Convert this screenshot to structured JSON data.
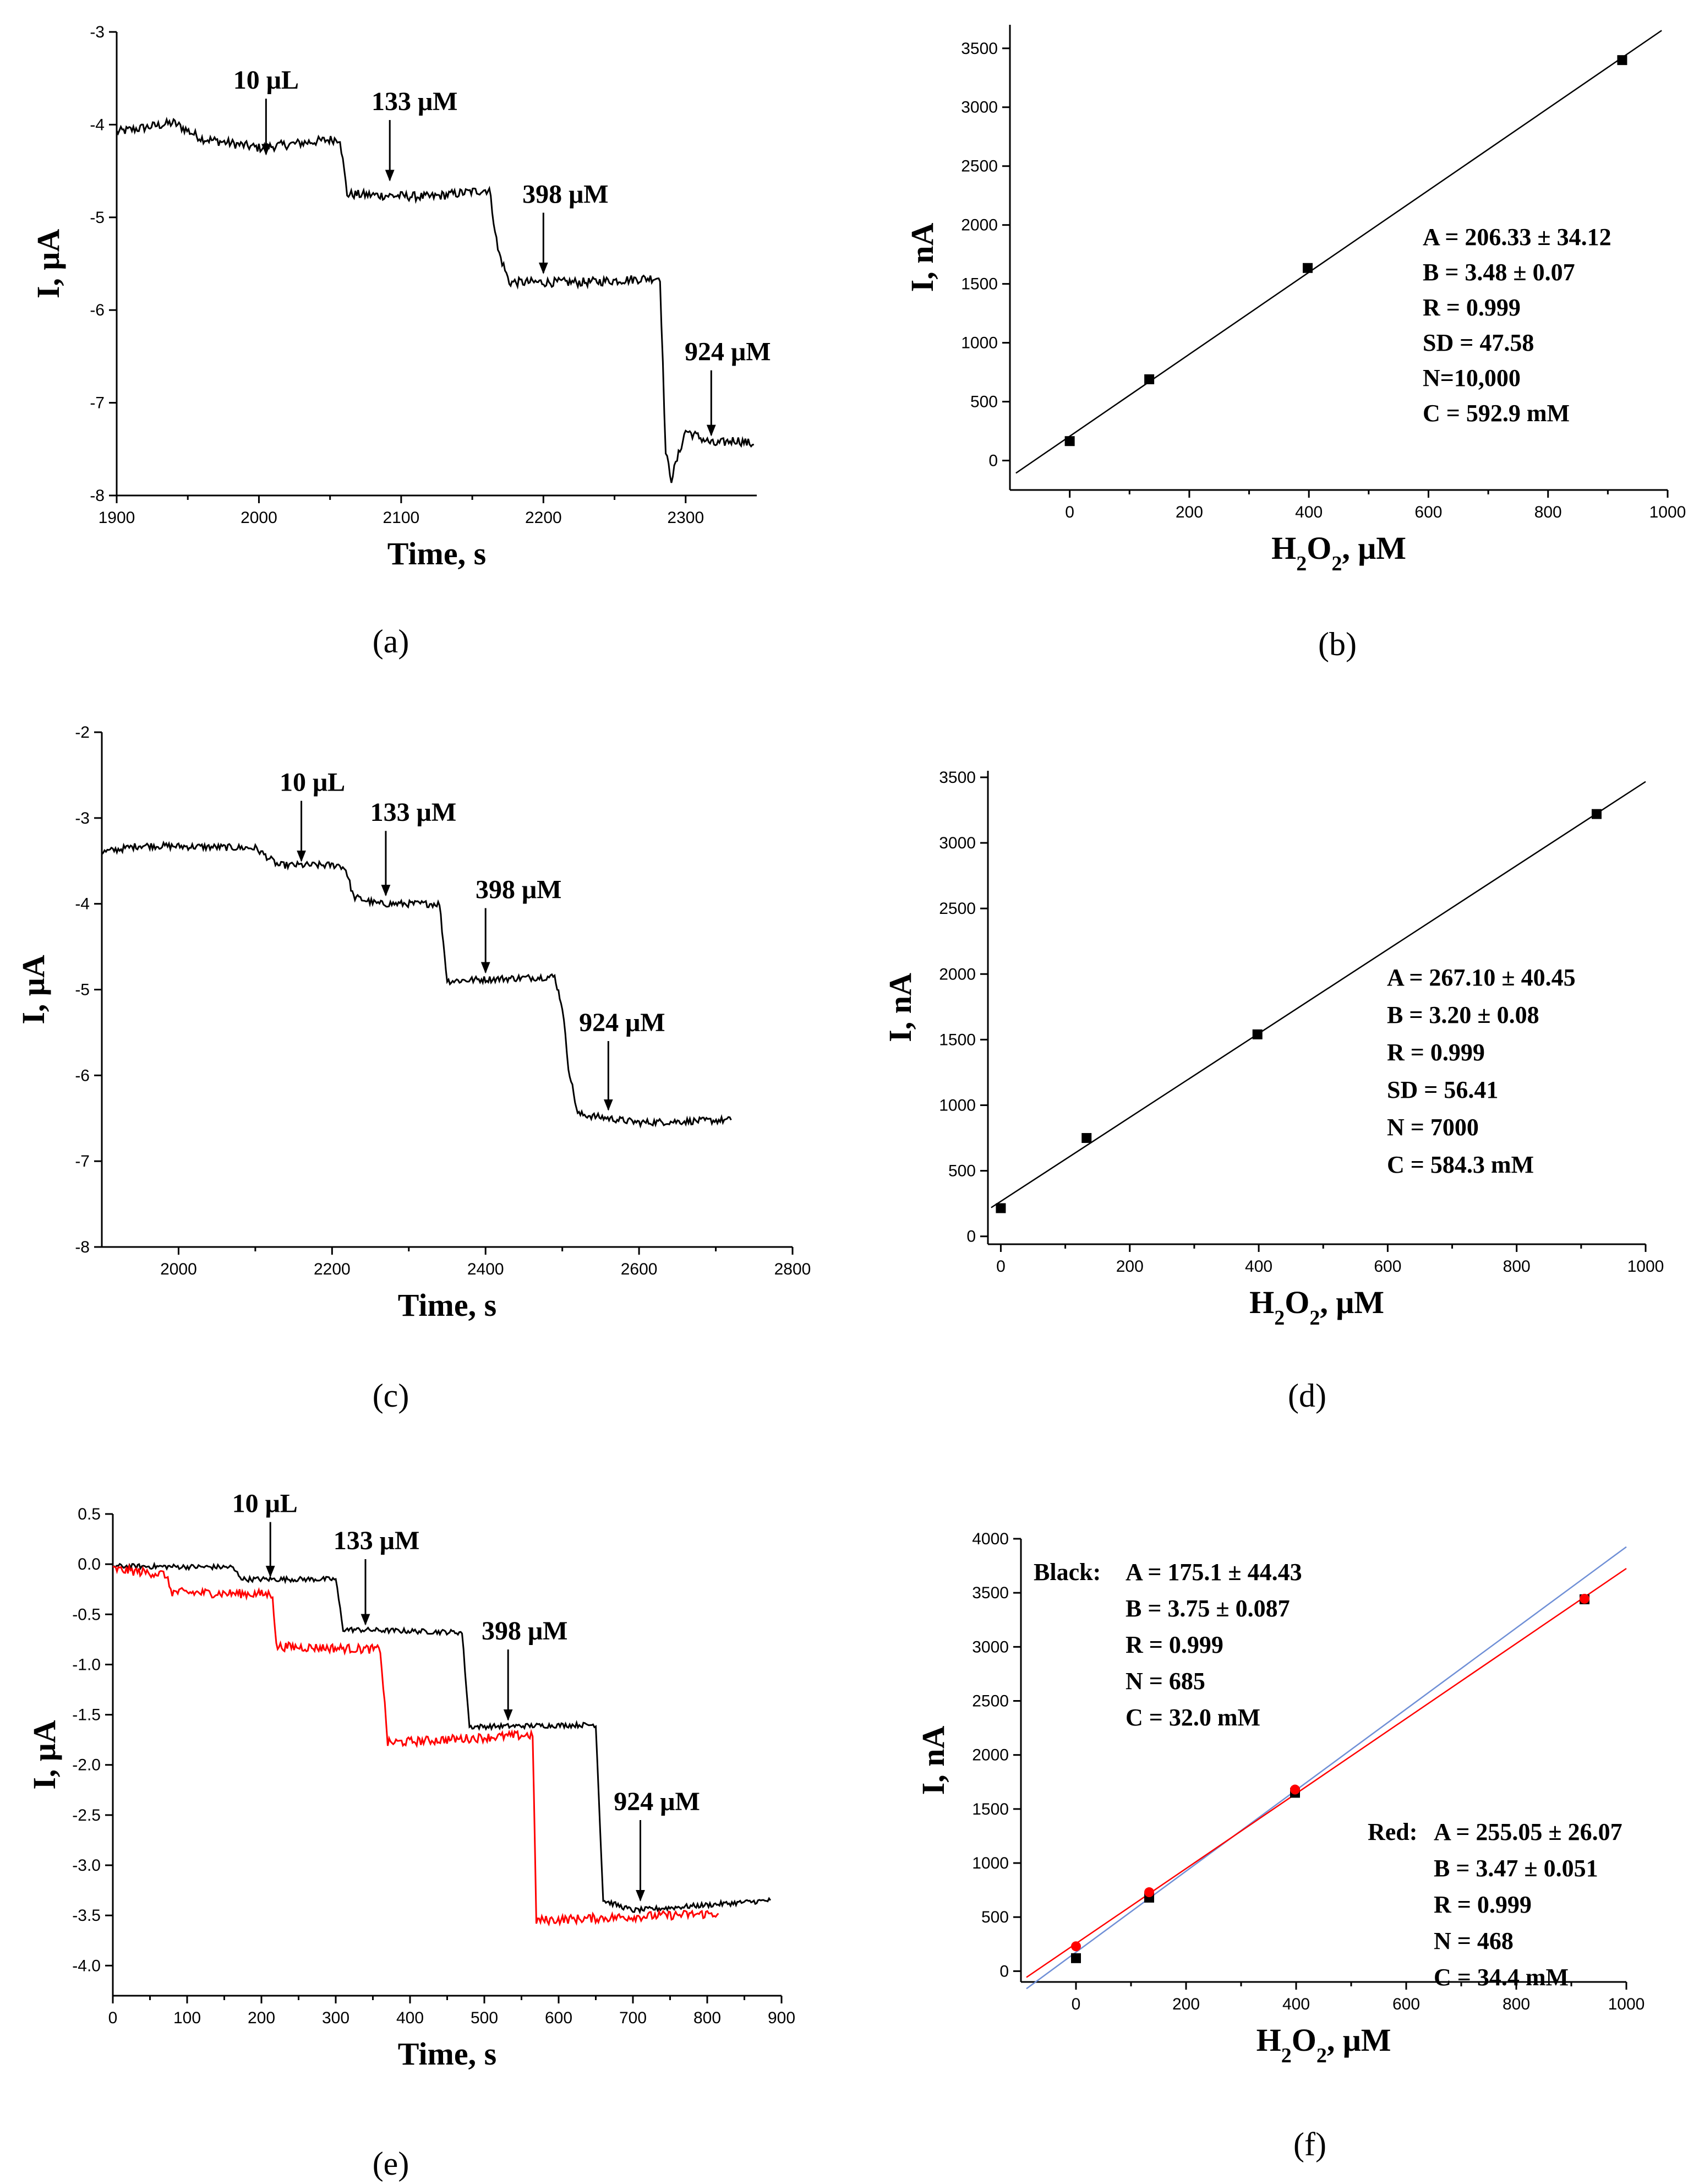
{
  "chart_data": [
    {
      "id": "a",
      "type": "line",
      "panel_label": "(a)",
      "xlabel": "Time, s",
      "ylabel": "I, μA",
      "xlim": [
        1900,
        2350
      ],
      "ylim": [
        -8,
        -3
      ],
      "xticks": [
        1900,
        2000,
        2100,
        2200,
        2300
      ],
      "yticks": [
        -3,
        -4,
        -5,
        -6,
        -7,
        -8
      ],
      "series": [
        {
          "name": "current",
          "color": "#000000",
          "noise": 0.05,
          "points": [
            [
              1900,
              -4.08
            ],
            [
              1940,
              -3.98
            ],
            [
              1960,
              -4.15
            ],
            [
              2000,
              -4.25
            ],
            [
              2040,
              -4.18
            ],
            [
              2057,
              -4.15
            ],
            [
              2062,
              -4.75
            ],
            [
              2120,
              -4.78
            ],
            [
              2162,
              -4.7
            ],
            [
              2168,
              -5.35
            ],
            [
              2176,
              -5.7
            ],
            [
              2230,
              -5.7
            ],
            [
              2282,
              -5.65
            ],
            [
              2286,
              -7.55
            ],
            [
              2290,
              -7.82
            ],
            [
              2300,
              -7.3
            ],
            [
              2320,
              -7.45
            ],
            [
              2335,
              -7.4
            ],
            [
              2348,
              -7.45
            ]
          ]
        }
      ],
      "annotations": [
        {
          "text": "10 μL",
          "x": 2005,
          "y_tip": -4.32,
          "y_top": -3.72,
          "dx": 0
        },
        {
          "text": "133 μM",
          "x": 2092,
          "y_tip": -4.6,
          "y_top": -3.95,
          "dx": 45
        },
        {
          "text": "398 μM",
          "x": 2200,
          "y_tip": -5.6,
          "y_top": -4.95,
          "dx": 40
        },
        {
          "text": "924 μM",
          "x": 2318,
          "y_tip": -7.35,
          "y_top": -6.65,
          "dx": 30
        }
      ]
    },
    {
      "id": "b",
      "type": "scatter",
      "panel_label": "(b)",
      "xlabel": "H",
      "xlabel_sub1": "2",
      "xlabel_mid": "O",
      "xlabel_sub2": "2",
      "xlabel_tail": ", μM",
      "ylabel": "I, nA",
      "xlim": [
        -100,
        1000
      ],
      "ylim": [
        -250,
        3700
      ],
      "xticks": [
        0,
        200,
        400,
        600,
        800,
        1000
      ],
      "yticks": [
        0,
        500,
        1000,
        1500,
        2000,
        2500,
        3000,
        3500
      ],
      "series": [
        {
          "name": "data",
          "color": "#000000",
          "x": [
            0,
            133,
            398,
            924
          ],
          "y": [
            165,
            690,
            1635,
            3400
          ]
        }
      ],
      "fit_lines": [
        {
          "color": "#000000",
          "intercept": 206.33,
          "slope": 3.48,
          "x_range": [
            -90,
            990
          ]
        }
      ],
      "stats": [
        "A = 206.33 ± 34.12",
        "B = 3.48 ± 0.07",
        "R = 0.999",
        "SD = 47.58",
        "N=10,000",
        "C = 592.9 mM"
      ]
    },
    {
      "id": "c",
      "type": "line",
      "panel_label": "(c)",
      "xlabel": "Time, s",
      "ylabel": "I, μA",
      "xlim": [
        1900,
        2800
      ],
      "ylim": [
        -8,
        -2
      ],
      "xticks": [
        2000,
        2200,
        2400,
        2600,
        2800
      ],
      "yticks": [
        -2,
        -3,
        -4,
        -5,
        -6,
        -7,
        -8
      ],
      "series": [
        {
          "name": "current",
          "color": "#000000",
          "noise": 0.04,
          "points": [
            [
              1900,
              -3.4
            ],
            [
              1950,
              -3.32
            ],
            [
              2100,
              -3.35
            ],
            [
              2115,
              -3.45
            ],
            [
              2130,
              -3.55
            ],
            [
              2210,
              -3.55
            ],
            [
              2218,
              -3.6
            ],
            [
              2228,
              -3.92
            ],
            [
              2260,
              -4.0
            ],
            [
              2340,
              -4.0
            ],
            [
              2345,
              -4.45
            ],
            [
              2350,
              -4.9
            ],
            [
              2400,
              -4.88
            ],
            [
              2490,
              -4.85
            ],
            [
              2500,
              -5.2
            ],
            [
              2508,
              -5.9
            ],
            [
              2520,
              -6.45
            ],
            [
              2600,
              -6.55
            ],
            [
              2720,
              -6.52
            ]
          ]
        }
      ],
      "annotations": [
        {
          "text": "10 μL",
          "x": 2160,
          "y_tip": -3.5,
          "y_top": -2.8,
          "dx": 20
        },
        {
          "text": "133 μM",
          "x": 2270,
          "y_tip": -3.9,
          "y_top": -3.15,
          "dx": 50
        },
        {
          "text": "398 μM",
          "x": 2400,
          "y_tip": -4.8,
          "y_top": -4.05,
          "dx": 60
        },
        {
          "text": "924 μM",
          "x": 2560,
          "y_tip": -6.4,
          "y_top": -5.6,
          "dx": 25
        }
      ]
    },
    {
      "id": "d",
      "type": "scatter",
      "panel_label": "(d)",
      "xlabel": "H",
      "xlabel_sub1": "2",
      "xlabel_mid": "O",
      "xlabel_sub2": "2",
      "xlabel_tail": ", μM",
      "ylabel": "I, nA",
      "xlim": [
        -20,
        1000
      ],
      "ylim": [
        -60,
        3550
      ],
      "xticks": [
        0,
        200,
        400,
        600,
        800,
        1000
      ],
      "yticks": [
        0,
        500,
        1000,
        1500,
        2000,
        2500,
        3000,
        3500
      ],
      "series": [
        {
          "name": "data",
          "color": "#000000",
          "x": [
            0,
            133,
            398,
            924
          ],
          "y": [
            215,
            750,
            1540,
            3220
          ]
        }
      ],
      "fit_lines": [
        {
          "color": "#000000",
          "intercept": 267.1,
          "slope": 3.2,
          "x_range": [
            -15,
            1000
          ]
        }
      ],
      "stats": [
        "A = 267.10 ± 40.45",
        "B = 3.20 ± 0.08",
        "R = 0.999",
        "SD = 56.41",
        "N = 7000",
        "C = 584.3 mM"
      ]
    },
    {
      "id": "e",
      "type": "line",
      "panel_label": "(e)",
      "xlabel": "Time, s",
      "ylabel": "I, μA",
      "xlim": [
        0,
        900
      ],
      "ylim": [
        -4.3,
        0.5
      ],
      "xticks": [
        0,
        100,
        200,
        300,
        400,
        500,
        600,
        700,
        800,
        900
      ],
      "yticks": [
        0.5,
        0.0,
        -0.5,
        -1.0,
        -1.5,
        -2.0,
        -2.5,
        -3.0,
        -3.5,
        -4.0
      ],
      "ytick_labels": [
        "0.5",
        "0.0",
        "-0.5",
        "-1.0",
        "-1.5",
        "-2.0",
        "-2.5",
        "-3.0",
        "-3.5",
        "-4.0"
      ],
      "series": [
        {
          "name": "black",
          "color": "#000000",
          "noise": 0.025,
          "points": [
            [
              0,
              -0.02
            ],
            [
              160,
              -0.03
            ],
            [
              175,
              -0.15
            ],
            [
              300,
              -0.15
            ],
            [
              310,
              -0.65
            ],
            [
              470,
              -0.68
            ],
            [
              480,
              -1.62
            ],
            [
              650,
              -1.6
            ],
            [
              660,
              -3.35
            ],
            [
              700,
              -3.45
            ],
            [
              885,
              -3.35
            ]
          ]
        },
        {
          "name": "red",
          "color": "#ff0000",
          "noise": 0.045,
          "points": [
            [
              0,
              -0.05
            ],
            [
              70,
              -0.1
            ],
            [
              80,
              -0.28
            ],
            [
              215,
              -0.3
            ],
            [
              220,
              -0.82
            ],
            [
              360,
              -0.85
            ],
            [
              370,
              -1.78
            ],
            [
              565,
              -1.7
            ],
            [
              570,
              -3.55
            ],
            [
              815,
              -3.48
            ]
          ]
        }
      ],
      "annotations": [
        {
          "text": "10 μL",
          "x": 212,
          "y_tip": -0.12,
          "y_top": 0.42,
          "dx": -10
        },
        {
          "text": "133 μM",
          "x": 340,
          "y_tip": -0.6,
          "y_top": 0.05,
          "dx": 20
        },
        {
          "text": "398 μM",
          "x": 532,
          "y_tip": -1.55,
          "y_top": -0.85,
          "dx": 30
        },
        {
          "text": "924 μM",
          "x": 710,
          "y_tip": -3.35,
          "y_top": -2.55,
          "dx": 30
        }
      ]
    },
    {
      "id": "f",
      "type": "scatter",
      "panel_label": "(f)",
      "xlabel": "H",
      "xlabel_sub1": "2",
      "xlabel_mid": "O",
      "xlabel_sub2": "2",
      "xlabel_tail": ", μM",
      "ylabel": "I, nA",
      "xlim": [
        -100,
        1000
      ],
      "ylim": [
        -100,
        4000
      ],
      "xticks": [
        0,
        200,
        400,
        600,
        800,
        1000
      ],
      "yticks": [
        0,
        500,
        1000,
        1500,
        2000,
        2500,
        3000,
        3500,
        4000
      ],
      "series": [
        {
          "name": "Black",
          "color": "#000000",
          "x": [
            0,
            133,
            398,
            924
          ],
          "y": [
            120,
            680,
            1650,
            3440
          ]
        },
        {
          "name": "Red",
          "color": "#ff0000",
          "x": [
            0,
            133,
            398,
            924
          ],
          "y": [
            230,
            730,
            1680,
            3445
          ]
        }
      ],
      "fit_lines": [
        {
          "color": "#6f8fd6",
          "intercept": 175.1,
          "slope": 3.75,
          "x_range": [
            -90,
            1000
          ]
        },
        {
          "color": "#ff0000",
          "intercept": 255.05,
          "slope": 3.47,
          "x_range": [
            -90,
            1000
          ]
        }
      ],
      "stats_black_label": "Black:",
      "stats_black": [
        "A = 175.1 ± 44.43",
        "B = 3.75 ± 0.087",
        "R = 0.999",
        "N = 685",
        "C = 32.0 mM"
      ],
      "stats_red_label": "Red:",
      "stats_red": [
        "A = 255.05 ± 26.07",
        "B = 3.47 ± 0.051",
        "R = 0.999",
        "N = 468",
        "C = 34.4 mM"
      ]
    }
  ]
}
